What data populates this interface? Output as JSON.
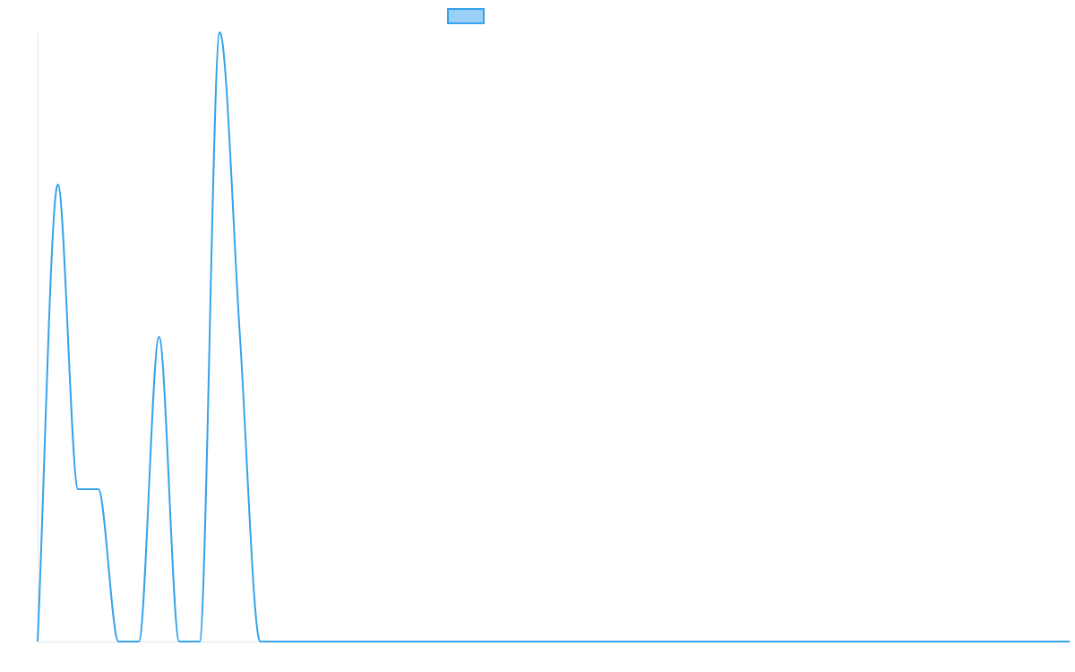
{
  "chart_data": {
    "type": "line",
    "title": "",
    "xlabel": "",
    "ylabel": "",
    "legend_position": "top",
    "grid": false,
    "x": [
      0,
      1,
      2,
      3,
      4,
      5,
      6,
      7,
      8,
      9,
      10,
      11,
      12,
      13,
      14,
      15,
      16,
      17,
      18,
      19,
      20,
      21,
      22,
      23,
      24,
      25,
      26,
      27,
      28,
      29,
      30,
      31,
      32,
      33,
      34,
      35,
      36,
      37,
      38,
      39,
      40,
      41,
      42,
      43,
      44,
      45,
      46,
      47,
      48,
      49,
      50,
      51
    ],
    "ylim": [
      0,
      60
    ],
    "series": [
      {
        "name": "",
        "color": "#36a2eb",
        "fill": "#9ad0f5",
        "values": [
          0,
          45,
          15,
          15,
          0,
          0,
          30,
          0,
          0,
          60,
          30,
          0,
          0,
          0,
          0,
          0,
          0,
          0,
          0,
          0,
          0,
          0,
          0,
          0,
          0,
          0,
          0,
          0,
          0,
          0,
          0,
          0,
          0,
          0,
          0,
          0,
          0,
          0,
          0,
          0,
          0,
          0,
          0,
          0,
          0,
          0,
          0,
          0,
          0,
          0,
          0,
          0
        ]
      }
    ]
  }
}
